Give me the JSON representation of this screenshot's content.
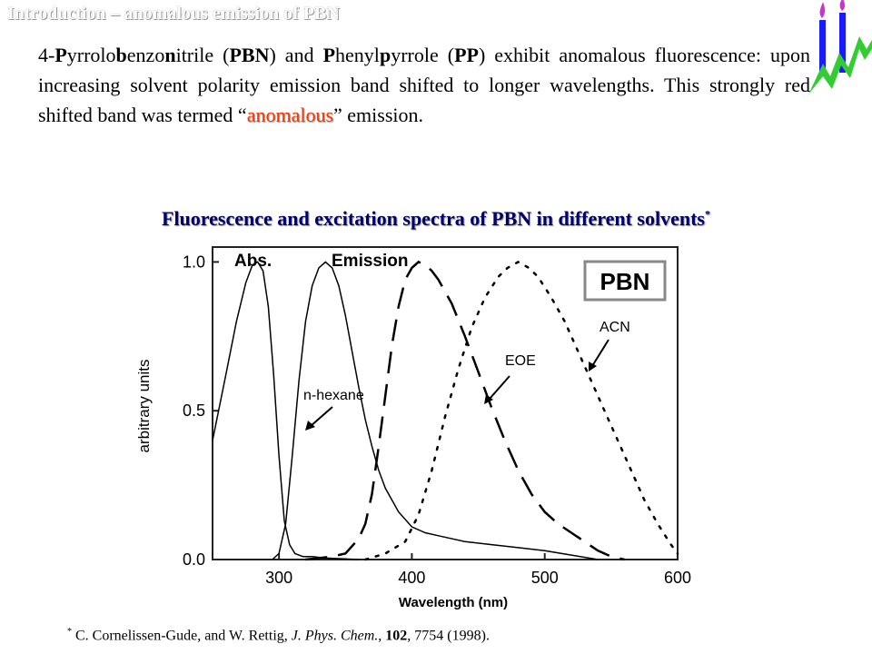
{
  "slide": {
    "title": "Introduction – anomalous emission of PBN"
  },
  "intro": {
    "p1": "4-",
    "p2": "P",
    "p3": "yrrolo",
    "p4": "b",
    "p5": "enzo",
    "p6": "n",
    "p7": "itrile (",
    "p8": "PBN",
    "p9": ") and ",
    "p10": "P",
    "p11": "henyl",
    "p12": "p",
    "p13": "yrrole (",
    "p14": "PP",
    "p15": ") exhibit anomalous fluorescence: upon increasing solvent polarity emission band shifted to longer wavelengths. This strongly red shifted band was termed “",
    "p16": "anomalous",
    "p17": "” emission."
  },
  "caption": {
    "text": "Fluorescence and excitation spectra of PBN in different solvents",
    "mark": "*"
  },
  "reference": {
    "mark": "*",
    "authors": " C. Cornelissen-Gude, and W. Rettig, ",
    "journal": "J. Phys. Chem.",
    "sep1": ", ",
    "volume": "102",
    "rest": ", 7754 (1998)."
  },
  "chart_data": {
    "type": "line",
    "xlabel": "Wavelength (nm)",
    "ylabel": "arbitrary units",
    "xlim": [
      250,
      600
    ],
    "ylim": [
      0,
      1.05
    ],
    "x_ticks": [
      "300",
      "400",
      "500",
      "600"
    ],
    "y_ticks": [
      "0.0",
      "0.5",
      "1.0"
    ],
    "labels": {
      "abs": "Abs.",
      "emission": "Emission",
      "pbn": "PBN",
      "hexane": "n-hexane",
      "eoe": "EOE",
      "acn": "ACN"
    },
    "series": [
      {
        "style": "solid",
        "x": [
          250,
          260,
          268,
          275,
          280,
          284,
          288,
          292,
          296,
          300,
          304,
          308,
          312,
          318,
          325,
          335,
          345,
          360
        ],
        "y": [
          0.4,
          0.62,
          0.8,
          0.93,
          0.99,
          1.0,
          0.97,
          0.85,
          0.62,
          0.35,
          0.13,
          0.05,
          0.02,
          0.01,
          0.01,
          0.005,
          0.003,
          0.0
        ]
      },
      {
        "style": "solid",
        "x": [
          295,
          300,
          305,
          310,
          315,
          320,
          325,
          330,
          335,
          340,
          345,
          350,
          355,
          360,
          365,
          370,
          375,
          380,
          390,
          400,
          410,
          420,
          440,
          460,
          480,
          500,
          520,
          540
        ],
        "y": [
          0.0,
          0.02,
          0.12,
          0.35,
          0.6,
          0.8,
          0.92,
          0.98,
          1.0,
          0.98,
          0.92,
          0.82,
          0.7,
          0.58,
          0.47,
          0.38,
          0.3,
          0.24,
          0.16,
          0.11,
          0.09,
          0.08,
          0.06,
          0.05,
          0.04,
          0.03,
          0.015,
          0.0
        ]
      },
      {
        "style": "dashed",
        "x": [
          320,
          340,
          350,
          360,
          365,
          370,
          375,
          380,
          385,
          390,
          395,
          400,
          405,
          410,
          415,
          420,
          430,
          440,
          450,
          460,
          470,
          480,
          490,
          500,
          510,
          520,
          530,
          540,
          550,
          555,
          560
        ],
        "y": [
          0.0,
          0.01,
          0.02,
          0.07,
          0.12,
          0.22,
          0.38,
          0.55,
          0.72,
          0.85,
          0.94,
          0.98,
          1.0,
          0.99,
          0.97,
          0.94,
          0.86,
          0.75,
          0.63,
          0.51,
          0.4,
          0.3,
          0.22,
          0.16,
          0.12,
          0.09,
          0.06,
          0.03,
          0.01,
          0.005,
          0.0
        ]
      },
      {
        "style": "dotted",
        "x": [
          365,
          380,
          395,
          405,
          415,
          425,
          435,
          445,
          455,
          465,
          472,
          480,
          488,
          495,
          505,
          515,
          525,
          535,
          545,
          555,
          565,
          575,
          585,
          595,
          600
        ],
        "y": [
          0.0,
          0.02,
          0.06,
          0.15,
          0.3,
          0.48,
          0.64,
          0.78,
          0.88,
          0.95,
          0.98,
          1.0,
          0.98,
          0.95,
          0.88,
          0.8,
          0.7,
          0.6,
          0.5,
          0.4,
          0.3,
          0.2,
          0.12,
          0.05,
          0.02
        ]
      }
    ]
  }
}
